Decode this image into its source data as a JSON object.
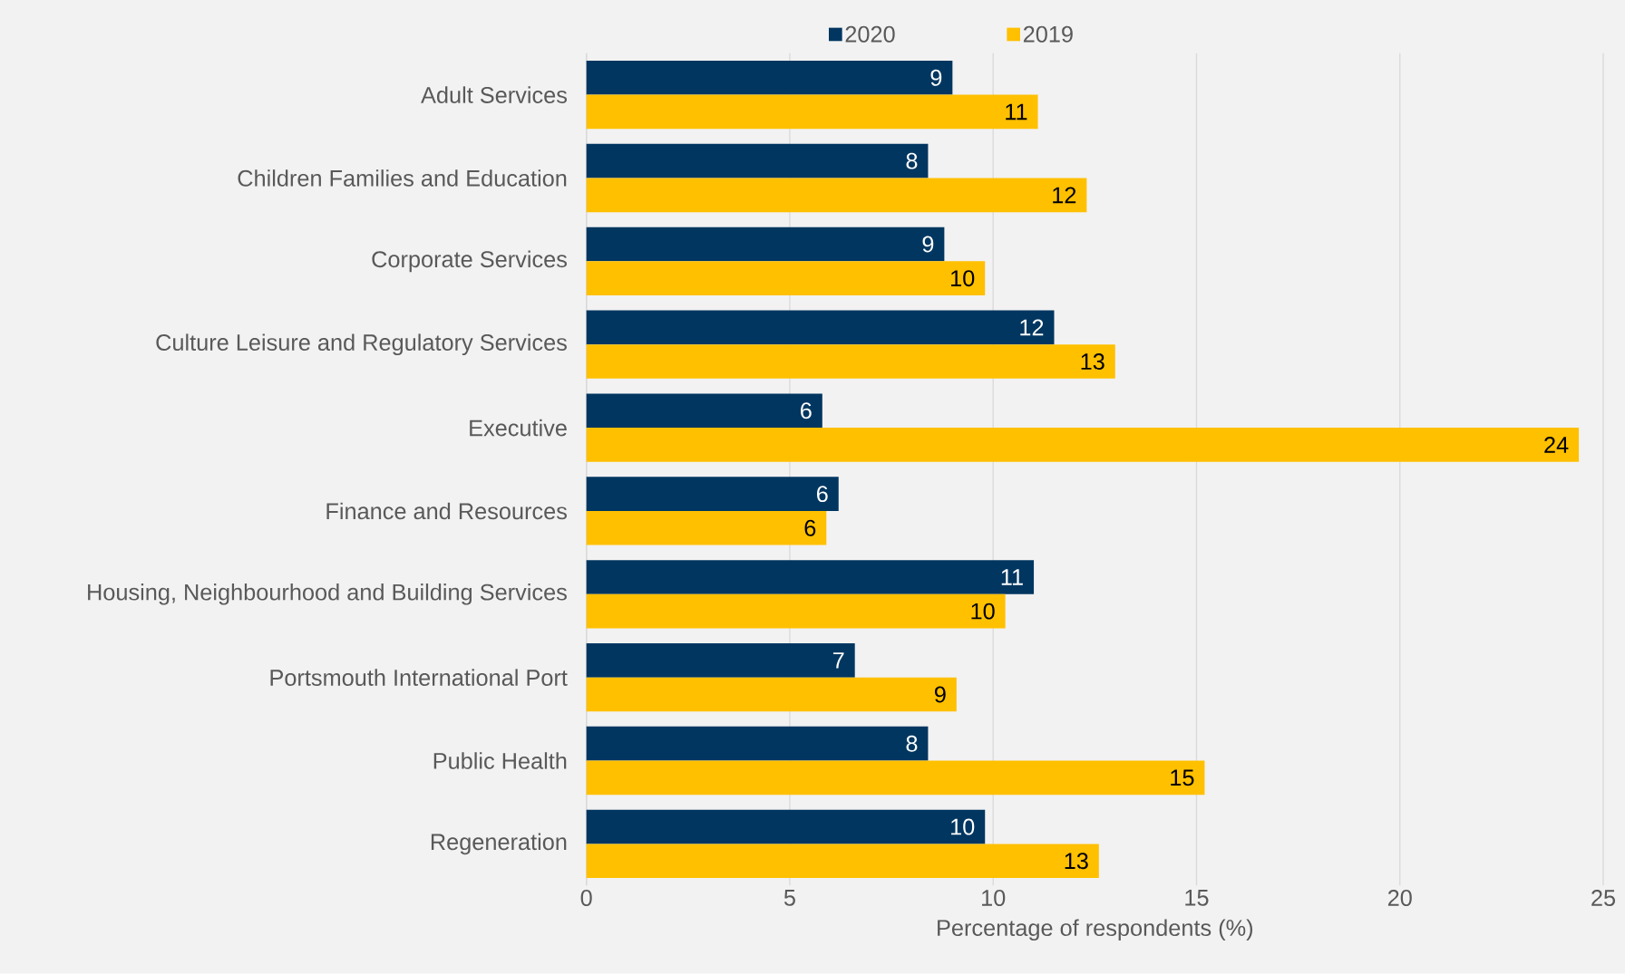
{
  "chart_data": {
    "type": "bar",
    "orientation": "horizontal",
    "xlabel": "Percentage of respondents (%)",
    "categories": [
      "Adult Services",
      "Children Families and Education",
      "Corporate Services",
      "Culture Leisure and Regulatory Services",
      "Executive",
      "Finance and Resources",
      "Housing, Neighbourhood and Building Services",
      "Portsmouth International Port",
      "Public Health",
      "Regeneration"
    ],
    "series": [
      {
        "name": "2020",
        "color": "#003660",
        "values": [
          9.0,
          8.4,
          8.8,
          11.5,
          5.8,
          6.2,
          11.0,
          6.6,
          8.4,
          9.8
        ],
        "value_labels": [
          "9",
          "8",
          "9",
          "12",
          "6",
          "6",
          "11",
          "7",
          "8",
          "10"
        ]
      },
      {
        "name": "2019",
        "color": "#ffc000",
        "values": [
          11.1,
          12.3,
          9.8,
          13.0,
          24.4,
          5.9,
          10.3,
          9.1,
          15.2,
          12.6
        ],
        "value_labels": [
          "11",
          "12",
          "10",
          "13",
          "24",
          "6",
          "10",
          "9",
          "15",
          "13"
        ]
      }
    ],
    "xlim": [
      0,
      25
    ],
    "xticks": [
      0,
      5,
      10,
      15,
      20,
      25
    ],
    "grid": "x",
    "legend": "top"
  }
}
